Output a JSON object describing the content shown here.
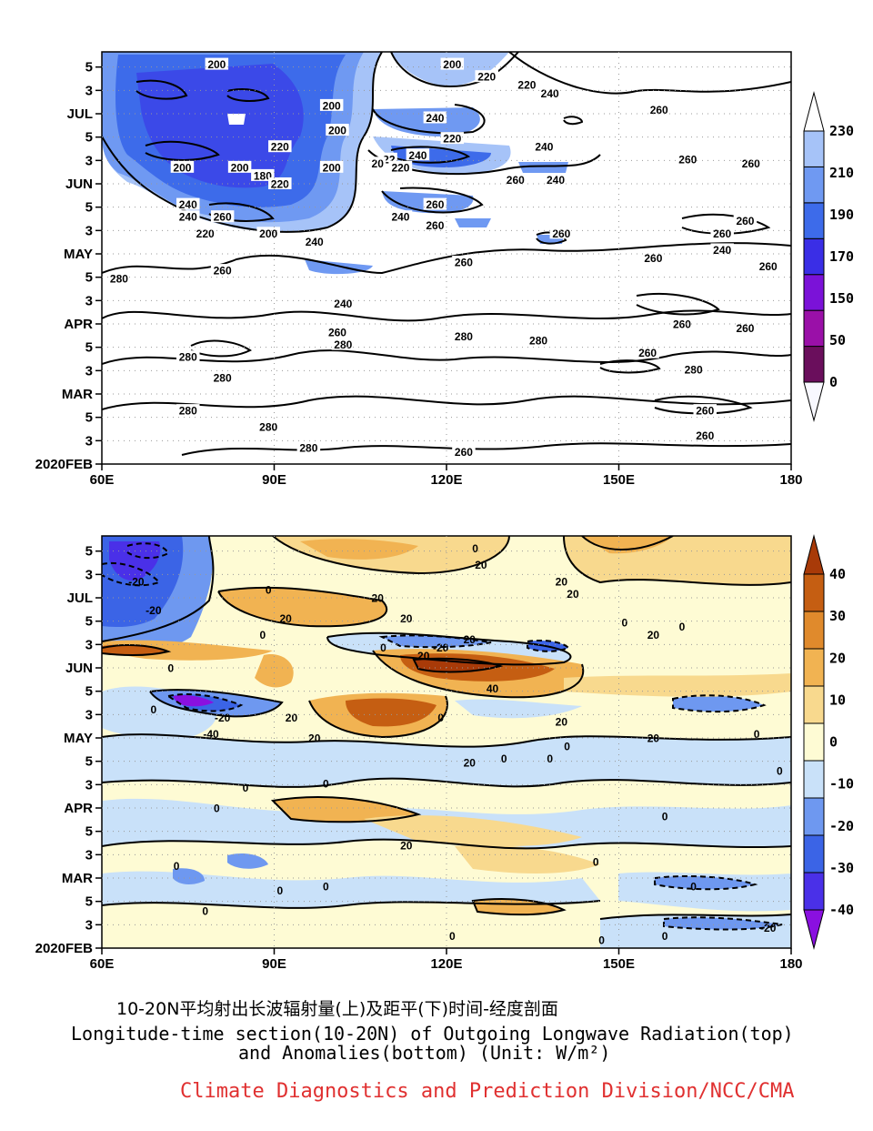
{
  "caption": {
    "cn": "10-20N平均射出长波辐射量(上)及距平(下)时间-经度剖面",
    "en_line1": "Longitude-time section(10-20N) of Outgoing Longwave Radiation(top)",
    "en_line2": "and Anomalies(bottom) (Unit: W/m²)"
  },
  "credit": {
    "text": "Climate Diagnostics and Prediction Division/NCC/CMA",
    "color": "#e03030"
  },
  "chart_data": [
    {
      "type": "heatmap",
      "title": "",
      "xlabel": "",
      "ylabel": "",
      "xlim": [
        60,
        180
      ],
      "x_ticks": [
        60,
        90,
        120,
        150,
        180
      ],
      "x_tick_labels": [
        "60E",
        "90E",
        "120E",
        "150E",
        "180"
      ],
      "y_tick_labels": [
        "2020FEB",
        "3",
        "5",
        "MAR",
        "3",
        "5",
        "APR",
        "3",
        "5",
        "MAY",
        "3",
        "5",
        "JUN",
        "3",
        "5",
        "JUL",
        "3",
        "5"
      ],
      "colorbar": {
        "levels": [
          0,
          50,
          150,
          170,
          190,
          210,
          230
        ],
        "colors": [
          "#f8f8ff",
          "#6a0e5c",
          "#9a10a8",
          "#7b12d8",
          "#3a2ee6",
          "#3d6bea",
          "#6f99f2",
          "#a6c3f8",
          "#ffffff"
        ]
      },
      "contour_labels": [
        {
          "x": 80,
          "t": 0.97,
          "v": "200"
        },
        {
          "x": 121,
          "t": 0.97,
          "v": "200"
        },
        {
          "x": 127,
          "t": 0.94,
          "v": "220"
        },
        {
          "x": 134,
          "t": 0.92,
          "v": "220"
        },
        {
          "x": 138,
          "t": 0.9,
          "v": "240"
        },
        {
          "x": 100,
          "t": 0.87,
          "v": "200"
        },
        {
          "x": 157,
          "t": 0.86,
          "v": "260"
        },
        {
          "x": 118,
          "t": 0.84,
          "v": "240"
        },
        {
          "x": 101,
          "t": 0.81,
          "v": "200"
        },
        {
          "x": 121,
          "t": 0.79,
          "v": "220"
        },
        {
          "x": 137,
          "t": 0.77,
          "v": "240"
        },
        {
          "x": 91,
          "t": 0.77,
          "v": "220"
        },
        {
          "x": 110,
          "t": 0.74,
          "v": "22"
        },
        {
          "x": 115,
          "t": 0.75,
          "v": "240"
        },
        {
          "x": 162,
          "t": 0.74,
          "v": "260"
        },
        {
          "x": 173,
          "t": 0.73,
          "v": "260"
        },
        {
          "x": 74,
          "t": 0.72,
          "v": "200"
        },
        {
          "x": 84,
          "t": 0.72,
          "v": "200"
        },
        {
          "x": 100,
          "t": 0.72,
          "v": "200"
        },
        {
          "x": 108,
          "t": 0.73,
          "v": "20"
        },
        {
          "x": 112,
          "t": 0.72,
          "v": "220"
        },
        {
          "x": 132,
          "t": 0.69,
          "v": "260"
        },
        {
          "x": 139,
          "t": 0.69,
          "v": "240"
        },
        {
          "x": 88,
          "t": 0.7,
          "v": "180"
        },
        {
          "x": 91,
          "t": 0.68,
          "v": "220"
        },
        {
          "x": 75,
          "t": 0.63,
          "v": "240"
        },
        {
          "x": 118,
          "t": 0.63,
          "v": "260"
        },
        {
          "x": 75,
          "t": 0.6,
          "v": "240"
        },
        {
          "x": 81,
          "t": 0.6,
          "v": "260"
        },
        {
          "x": 112,
          "t": 0.6,
          "v": "240"
        },
        {
          "x": 118,
          "t": 0.58,
          "v": "260"
        },
        {
          "x": 172,
          "t": 0.59,
          "v": "260"
        },
        {
          "x": 78,
          "t": 0.56,
          "v": "220"
        },
        {
          "x": 89,
          "t": 0.56,
          "v": "200"
        },
        {
          "x": 140,
          "t": 0.56,
          "v": "260"
        },
        {
          "x": 168,
          "t": 0.56,
          "v": "260"
        },
        {
          "x": 97,
          "t": 0.54,
          "v": "240"
        },
        {
          "x": 168,
          "t": 0.52,
          "v": "240"
        },
        {
          "x": 123,
          "t": 0.49,
          "v": "260"
        },
        {
          "x": 156,
          "t": 0.5,
          "v": "260"
        },
        {
          "x": 176,
          "t": 0.48,
          "v": "260"
        },
        {
          "x": 63,
          "t": 0.45,
          "v": "280"
        },
        {
          "x": 81,
          "t": 0.47,
          "v": "260"
        },
        {
          "x": 102,
          "t": 0.39,
          "v": "240"
        },
        {
          "x": 161,
          "t": 0.34,
          "v": "260"
        },
        {
          "x": 172,
          "t": 0.33,
          "v": "260"
        },
        {
          "x": 101,
          "t": 0.32,
          "v": "260"
        },
        {
          "x": 123,
          "t": 0.31,
          "v": "280"
        },
        {
          "x": 136,
          "t": 0.3,
          "v": "280"
        },
        {
          "x": 102,
          "t": 0.29,
          "v": "280"
        },
        {
          "x": 75,
          "t": 0.26,
          "v": "280"
        },
        {
          "x": 155,
          "t": 0.27,
          "v": "260"
        },
        {
          "x": 163,
          "t": 0.23,
          "v": "280"
        },
        {
          "x": 81,
          "t": 0.21,
          "v": "280"
        },
        {
          "x": 75,
          "t": 0.13,
          "v": "280"
        },
        {
          "x": 165,
          "t": 0.13,
          "v": "260"
        },
        {
          "x": 89,
          "t": 0.09,
          "v": "280"
        },
        {
          "x": 165,
          "t": 0.07,
          "v": "260"
        },
        {
          "x": 96,
          "t": 0.04,
          "v": "280"
        },
        {
          "x": 123,
          "t": 0.03,
          "v": "260"
        }
      ]
    },
    {
      "type": "heatmap",
      "title": "",
      "xlabel": "",
      "ylabel": "",
      "xlim": [
        60,
        180
      ],
      "x_ticks": [
        60,
        90,
        120,
        150,
        180
      ],
      "x_tick_labels": [
        "60E",
        "90E",
        "120E",
        "150E",
        "180"
      ],
      "y_tick_labels": [
        "2020FEB",
        "3",
        "5",
        "MAR",
        "3",
        "5",
        "APR",
        "3",
        "5",
        "MAY",
        "3",
        "5",
        "JUN",
        "3",
        "5",
        "JUL",
        "3",
        "5"
      ],
      "colorbar": {
        "levels": [
          -40,
          -30,
          -20,
          -10,
          0,
          10,
          20,
          30,
          40
        ],
        "colors": [
          "#8a10e0",
          "#4a30e8",
          "#3b64e6",
          "#6e98f0",
          "#c9e1f9",
          "#fefbd4",
          "#f8d98e",
          "#f1b352",
          "#e08a2c",
          "#c55e12",
          "#a83a08"
        ]
      },
      "contour_labels": [
        {
          "x": 125,
          "t": 0.97,
          "v": "0"
        },
        {
          "x": 66,
          "t": 0.89,
          "v": "-20"
        },
        {
          "x": 89,
          "t": 0.87,
          "v": "0"
        },
        {
          "x": 126,
          "t": 0.93,
          "v": "20"
        },
        {
          "x": 108,
          "t": 0.85,
          "v": "20"
        },
        {
          "x": 140,
          "t": 0.89,
          "v": "20"
        },
        {
          "x": 142,
          "t": 0.86,
          "v": "20"
        },
        {
          "x": 69,
          "t": 0.82,
          "v": "-20"
        },
        {
          "x": 92,
          "t": 0.8,
          "v": "20"
        },
        {
          "x": 113,
          "t": 0.8,
          "v": "20"
        },
        {
          "x": 151,
          "t": 0.79,
          "v": "0"
        },
        {
          "x": 161,
          "t": 0.78,
          "v": "0"
        },
        {
          "x": 156,
          "t": 0.76,
          "v": "20"
        },
        {
          "x": 88,
          "t": 0.76,
          "v": "0"
        },
        {
          "x": 124,
          "t": 0.75,
          "v": "20"
        },
        {
          "x": 109,
          "t": 0.73,
          "v": "0"
        },
        {
          "x": 116,
          "t": 0.71,
          "v": "20"
        },
        {
          "x": 119,
          "t": 0.73,
          "v": "-20"
        },
        {
          "x": 72,
          "t": 0.68,
          "v": "0"
        },
        {
          "x": 128,
          "t": 0.63,
          "v": "40"
        },
        {
          "x": 69,
          "t": 0.58,
          "v": "0"
        },
        {
          "x": 81,
          "t": 0.56,
          "v": "-20"
        },
        {
          "x": 79,
          "t": 0.52,
          "v": "-40"
        },
        {
          "x": 93,
          "t": 0.56,
          "v": "20"
        },
        {
          "x": 119,
          "t": 0.56,
          "v": "0"
        },
        {
          "x": 140,
          "t": 0.55,
          "v": "20"
        },
        {
          "x": 156,
          "t": 0.51,
          "v": "20"
        },
        {
          "x": 174,
          "t": 0.52,
          "v": "0"
        },
        {
          "x": 97,
          "t": 0.51,
          "v": "20"
        },
        {
          "x": 141,
          "t": 0.49,
          "v": "0"
        },
        {
          "x": 138,
          "t": 0.46,
          "v": "0"
        },
        {
          "x": 130,
          "t": 0.46,
          "v": "0"
        },
        {
          "x": 124,
          "t": 0.45,
          "v": "20"
        },
        {
          "x": 178,
          "t": 0.43,
          "v": "0"
        },
        {
          "x": 99,
          "t": 0.4,
          "v": "0"
        },
        {
          "x": 85,
          "t": 0.39,
          "v": "0"
        },
        {
          "x": 80,
          "t": 0.34,
          "v": "0"
        },
        {
          "x": 158,
          "t": 0.32,
          "v": "0"
        },
        {
          "x": 113,
          "t": 0.25,
          "v": "20"
        },
        {
          "x": 146,
          "t": 0.21,
          "v": "0"
        },
        {
          "x": 73,
          "t": 0.2,
          "v": "0"
        },
        {
          "x": 99,
          "t": 0.15,
          "v": "0"
        },
        {
          "x": 91,
          "t": 0.14,
          "v": "0"
        },
        {
          "x": 163,
          "t": 0.15,
          "v": "0"
        },
        {
          "x": 78,
          "t": 0.09,
          "v": "0"
        },
        {
          "x": 176,
          "t": 0.05,
          "v": "-20"
        },
        {
          "x": 158,
          "t": 0.03,
          "v": "0"
        },
        {
          "x": 121,
          "t": 0.03,
          "v": "0"
        },
        {
          "x": 147,
          "t": 0.02,
          "v": "0"
        }
      ]
    }
  ]
}
